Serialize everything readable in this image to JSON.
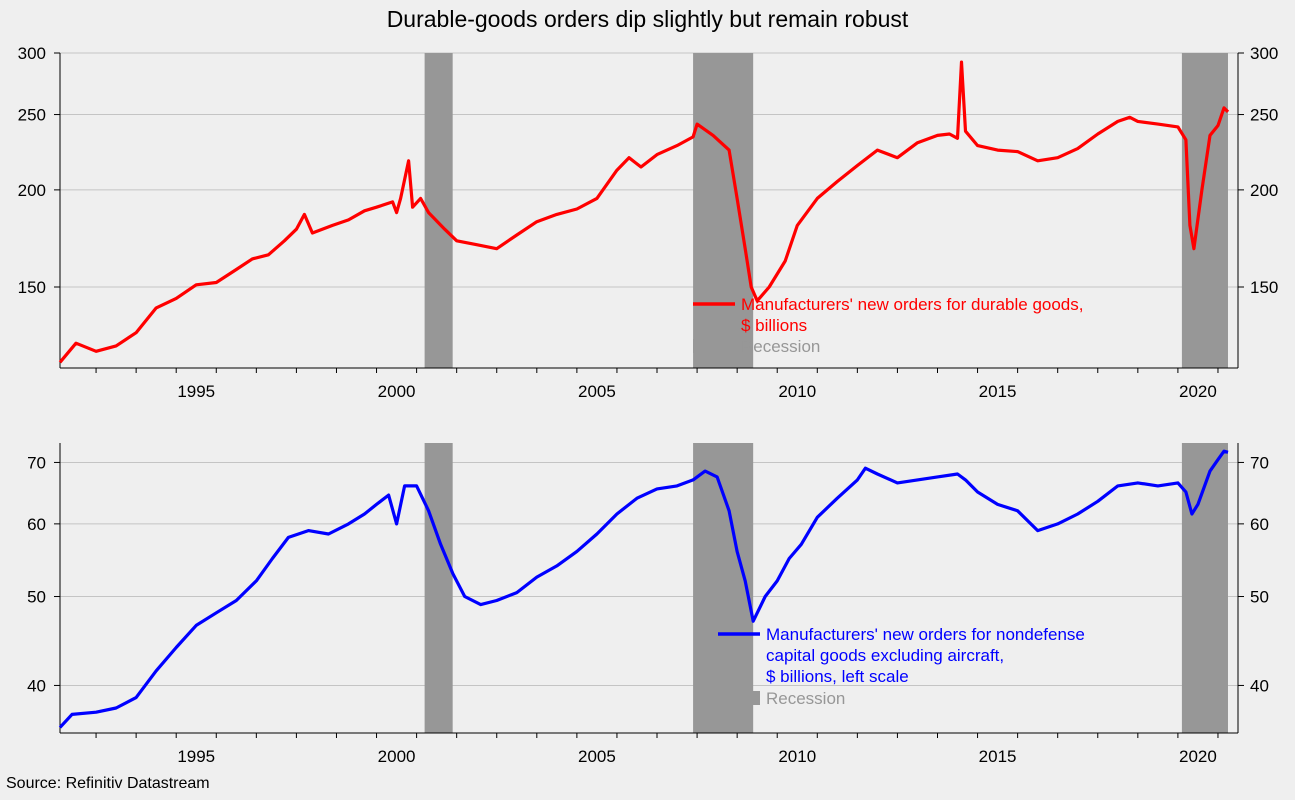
{
  "title": "Durable-goods orders dip slightly but remain robust",
  "source": "Source: Refinitiv Datastream",
  "chart_data": [
    {
      "type": "line",
      "scale": "log",
      "xlim": [
        1992.1,
        2021.5
      ],
      "ylim": [
        118,
        300
      ],
      "yticks": [
        150,
        200,
        250,
        300
      ],
      "xticks": [
        1995,
        2000,
        2005,
        2010,
        2015,
        2020
      ],
      "grid": true,
      "legend_position": "lower-right",
      "recessions": [
        [
          2001.2,
          2001.9
        ],
        [
          2007.9,
          2009.4
        ],
        [
          2020.1,
          2021.25
        ]
      ],
      "recession_color": "#979797",
      "legend": {
        "series_label": "Manufacturers' new orders for durable goods, $ billions",
        "series_lines": [
          "Manufacturers' new orders for durable goods,",
          "$ billions"
        ],
        "recession_label": "Recession"
      },
      "series": [
        {
          "name": "Manufacturers' new orders for durable goods, $ billions",
          "color": "#ff0000",
          "points": [
            [
              1992.1,
              120
            ],
            [
              1992.5,
              127
            ],
            [
              1993.0,
              124
            ],
            [
              1993.5,
              126
            ],
            [
              1994.0,
              131
            ],
            [
              1994.5,
              141
            ],
            [
              1995.0,
              145
            ],
            [
              1995.5,
              151
            ],
            [
              1996.0,
              152
            ],
            [
              1996.5,
              158
            ],
            [
              1996.9,
              163
            ],
            [
              1997.3,
              165
            ],
            [
              1997.7,
              172
            ],
            [
              1998.0,
              178
            ],
            [
              1998.2,
              186
            ],
            [
              1998.4,
              176
            ],
            [
              1998.9,
              180
            ],
            [
              1999.3,
              183
            ],
            [
              1999.7,
              188
            ],
            [
              2000.0,
              190
            ],
            [
              2000.4,
              193
            ],
            [
              2000.5,
              187
            ],
            [
              2000.6,
              195
            ],
            [
              2000.8,
              218
            ],
            [
              2000.9,
              190
            ],
            [
              2001.1,
              195
            ],
            [
              2001.3,
              187
            ],
            [
              2001.7,
              178
            ],
            [
              2002.0,
              172
            ],
            [
              2002.5,
              170
            ],
            [
              2003.0,
              168
            ],
            [
              2003.5,
              175
            ],
            [
              2004.0,
              182
            ],
            [
              2004.5,
              186
            ],
            [
              2005.0,
              189
            ],
            [
              2005.5,
              195
            ],
            [
              2006.0,
              212
            ],
            [
              2006.3,
              220
            ],
            [
              2006.6,
              214
            ],
            [
              2007.0,
              222
            ],
            [
              2007.5,
              228
            ],
            [
              2007.9,
              234
            ],
            [
              2008.0,
              243
            ],
            [
              2008.4,
              235
            ],
            [
              2008.8,
              225
            ],
            [
              2009.0,
              195
            ],
            [
              2009.2,
              168
            ],
            [
              2009.35,
              150
            ],
            [
              2009.5,
              144
            ],
            [
              2009.8,
              150
            ],
            [
              2010.2,
              162
            ],
            [
              2010.5,
              180
            ],
            [
              2011.0,
              195
            ],
            [
              2011.5,
              205
            ],
            [
              2012.0,
              215
            ],
            [
              2012.5,
              225
            ],
            [
              2013.0,
              220
            ],
            [
              2013.5,
              230
            ],
            [
              2014.0,
              235
            ],
            [
              2014.3,
              236
            ],
            [
              2014.5,
              233
            ],
            [
              2014.6,
              292
            ],
            [
              2014.7,
              238
            ],
            [
              2015.0,
              228
            ],
            [
              2015.5,
              225
            ],
            [
              2016.0,
              224
            ],
            [
              2016.5,
              218
            ],
            [
              2017.0,
              220
            ],
            [
              2017.5,
              226
            ],
            [
              2018.0,
              236
            ],
            [
              2018.5,
              245
            ],
            [
              2018.8,
              248
            ],
            [
              2019.0,
              245
            ],
            [
              2019.5,
              243
            ],
            [
              2020.0,
              241
            ],
            [
              2020.2,
              232
            ],
            [
              2020.3,
              180
            ],
            [
              2020.4,
              168
            ],
            [
              2020.6,
              200
            ],
            [
              2020.8,
              235
            ],
            [
              2021.0,
              242
            ],
            [
              2021.15,
              255
            ],
            [
              2021.25,
              252
            ]
          ]
        }
      ]
    },
    {
      "type": "line",
      "scale": "log",
      "xlim": [
        1992.1,
        2021.5
      ],
      "ylim": [
        35.5,
        73.5
      ],
      "yticks": [
        40,
        50,
        60,
        70
      ],
      "xticks": [
        1995,
        2000,
        2005,
        2010,
        2015,
        2020
      ],
      "grid": true,
      "legend_position": "lower-right",
      "recessions": [
        [
          2001.2,
          2001.9
        ],
        [
          2007.9,
          2009.4
        ],
        [
          2020.1,
          2021.25
        ]
      ],
      "recession_color": "#979797",
      "legend": {
        "series_label": "Manufacturers' new orders for nondefense capital goods excluding aircraft, $ billions, left scale",
        "series_lines": [
          "Manufacturers' new orders for nondefense",
          "capital goods excluding aircraft,",
          "$ billions, left scale"
        ],
        "recession_label": "Recession"
      },
      "series": [
        {
          "name": "Manufacturers' new orders for nondefense capital goods excluding aircraft, $ billions, left scale",
          "color": "#0000ff",
          "points": [
            [
              1992.1,
              36.0
            ],
            [
              1992.4,
              37.2
            ],
            [
              1993.0,
              37.4
            ],
            [
              1993.5,
              37.8
            ],
            [
              1994.0,
              38.8
            ],
            [
              1994.5,
              41.5
            ],
            [
              1995.0,
              44.0
            ],
            [
              1995.5,
              46.5
            ],
            [
              1996.0,
              48.0
            ],
            [
              1996.5,
              49.5
            ],
            [
              1997.0,
              52.0
            ],
            [
              1997.4,
              55.0
            ],
            [
              1997.8,
              58.0
            ],
            [
              1998.3,
              59.0
            ],
            [
              1998.8,
              58.5
            ],
            [
              1999.3,
              60.0
            ],
            [
              1999.7,
              61.5
            ],
            [
              2000.0,
              63.0
            ],
            [
              2000.3,
              64.5
            ],
            [
              2000.5,
              60.0
            ],
            [
              2000.7,
              66.0
            ],
            [
              2001.0,
              66.0
            ],
            [
              2001.3,
              62.0
            ],
            [
              2001.6,
              57.0
            ],
            [
              2001.9,
              53.0
            ],
            [
              2002.2,
              50.0
            ],
            [
              2002.6,
              49.0
            ],
            [
              2003.0,
              49.5
            ],
            [
              2003.5,
              50.5
            ],
            [
              2004.0,
              52.5
            ],
            [
              2004.5,
              54.0
            ],
            [
              2005.0,
              56.0
            ],
            [
              2005.5,
              58.5
            ],
            [
              2006.0,
              61.5
            ],
            [
              2006.5,
              64.0
            ],
            [
              2007.0,
              65.5
            ],
            [
              2007.5,
              66.0
            ],
            [
              2007.9,
              67.0
            ],
            [
              2008.2,
              68.5
            ],
            [
              2008.5,
              67.5
            ],
            [
              2008.8,
              62.0
            ],
            [
              2009.0,
              56.0
            ],
            [
              2009.2,
              52.0
            ],
            [
              2009.4,
              47.0
            ],
            [
              2009.7,
              50.0
            ],
            [
              2010.0,
              52.0
            ],
            [
              2010.3,
              55.0
            ],
            [
              2010.6,
              57.0
            ],
            [
              2011.0,
              61.0
            ],
            [
              2011.5,
              64.0
            ],
            [
              2012.0,
              67.0
            ],
            [
              2012.2,
              69.0
            ],
            [
              2012.5,
              68.0
            ],
            [
              2013.0,
              66.5
            ],
            [
              2013.5,
              67.0
            ],
            [
              2014.0,
              67.5
            ],
            [
              2014.5,
              68.0
            ],
            [
              2014.7,
              67.0
            ],
            [
              2015.0,
              65.0
            ],
            [
              2015.5,
              63.0
            ],
            [
              2016.0,
              62.0
            ],
            [
              2016.5,
              59.0
            ],
            [
              2017.0,
              60.0
            ],
            [
              2017.5,
              61.5
            ],
            [
              2018.0,
              63.5
            ],
            [
              2018.5,
              66.0
            ],
            [
              2019.0,
              66.5
            ],
            [
              2019.5,
              66.0
            ],
            [
              2020.0,
              66.5
            ],
            [
              2020.2,
              65.0
            ],
            [
              2020.35,
              61.5
            ],
            [
              2020.5,
              63.0
            ],
            [
              2020.8,
              68.5
            ],
            [
              2021.0,
              70.5
            ],
            [
              2021.15,
              72.0
            ],
            [
              2021.25,
              71.8
            ]
          ]
        }
      ]
    }
  ]
}
